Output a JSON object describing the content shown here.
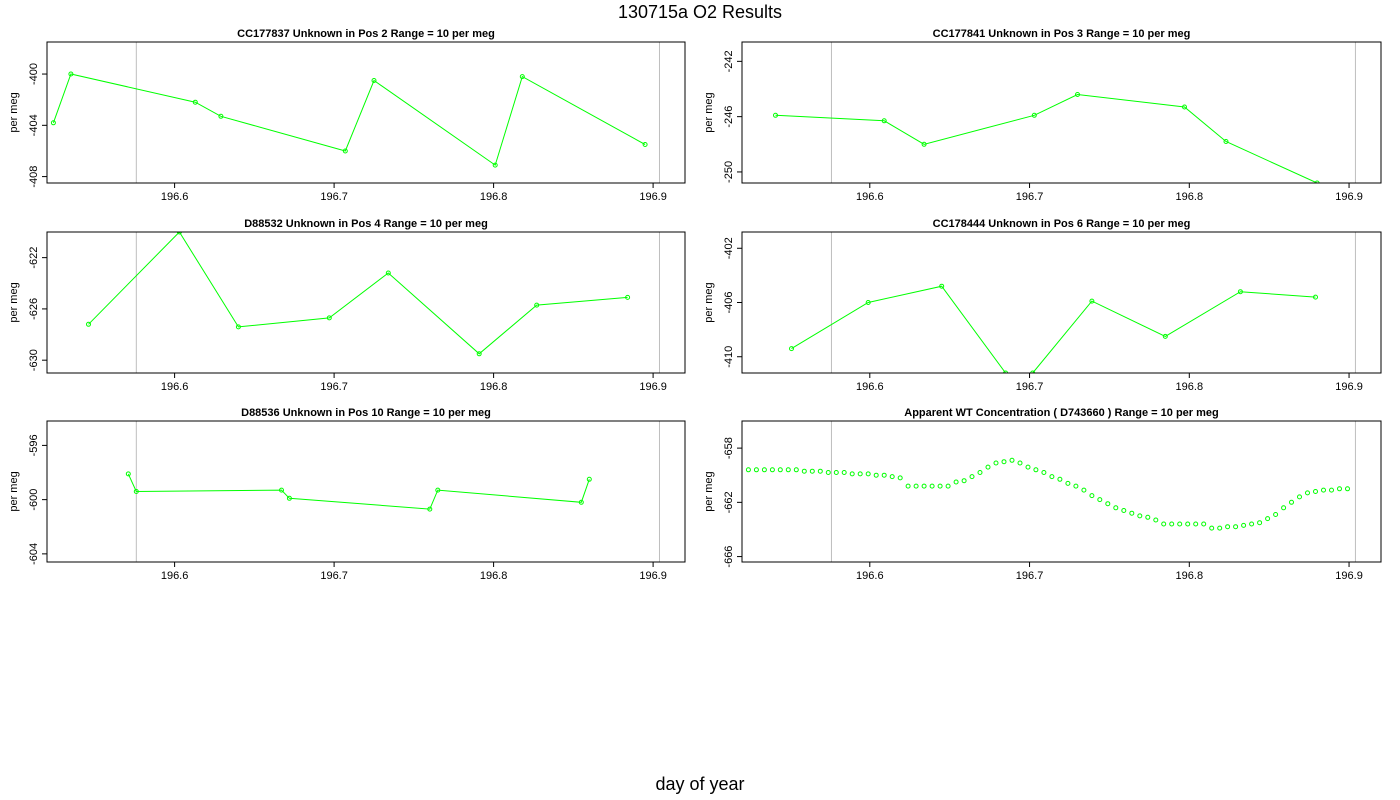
{
  "page": {
    "title": "130715a  O2 Results",
    "xlabel": "day of year"
  },
  "chart_data": [
    {
      "type": "line",
      "title": "CC177837    Unknown in Pos 2          Range = 10 per meg",
      "xlabel": "",
      "ylabel": "per meg",
      "xlim": [
        196.52,
        196.92
      ],
      "ylim": [
        -408.5,
        -397.5
      ],
      "xticks": [
        196.6,
        196.7,
        196.8,
        196.9
      ],
      "yticks": [
        -400,
        -404,
        -408
      ],
      "vlines": [
        196.576,
        196.904
      ],
      "points": [
        [
          196.524,
          -403.8
        ],
        [
          196.535,
          -400.0
        ],
        [
          196.613,
          -402.2
        ],
        [
          196.629,
          -403.3
        ],
        [
          196.707,
          -406.0
        ],
        [
          196.725,
          -400.5
        ],
        [
          196.801,
          -407.1
        ],
        [
          196.818,
          -400.2
        ],
        [
          196.895,
          -405.5
        ]
      ]
    },
    {
      "type": "line",
      "title": "CC177841    Unknown in Pos 3          Range = 10 per meg",
      "xlabel": "",
      "ylabel": "per meg",
      "xlim": [
        196.52,
        196.92
      ],
      "ylim": [
        -250.8,
        -240.6
      ],
      "xticks": [
        196.6,
        196.7,
        196.8,
        196.9
      ],
      "yticks": [
        -242,
        -246,
        -250
      ],
      "vlines": [
        196.576,
        196.904
      ],
      "points": [
        [
          196.541,
          -245.9
        ],
        [
          196.609,
          -246.3
        ],
        [
          196.634,
          -248.0
        ],
        [
          196.703,
          -245.9
        ],
        [
          196.73,
          -244.4
        ],
        [
          196.797,
          -245.3
        ],
        [
          196.823,
          -247.8
        ],
        [
          196.88,
          -250.8
        ]
      ]
    },
    {
      "type": "line",
      "title": "D88532    Unknown in Pos 4          Range = 10 per meg",
      "xlabel": "",
      "ylabel": "per meg",
      "xlim": [
        196.52,
        196.92
      ],
      "ylim": [
        -631.0,
        -620.0
      ],
      "xticks": [
        196.6,
        196.7,
        196.8,
        196.9
      ],
      "yticks": [
        -622,
        -626,
        -630
      ],
      "vlines": [
        196.576,
        196.904
      ],
      "points": [
        [
          196.546,
          -627.2
        ],
        [
          196.603,
          -620.0
        ],
        [
          196.64,
          -627.4
        ],
        [
          196.697,
          -626.7
        ],
        [
          196.734,
          -623.2
        ],
        [
          196.791,
          -629.5
        ],
        [
          196.827,
          -625.7
        ],
        [
          196.884,
          -625.1
        ]
      ]
    },
    {
      "type": "line",
      "title": "CC178444    Unknown in Pos 6          Range = 10 per meg",
      "xlabel": "",
      "ylabel": "per meg",
      "xlim": [
        196.52,
        196.92
      ],
      "ylim": [
        -411.2,
        -400.8
      ],
      "xticks": [
        196.6,
        196.7,
        196.8,
        196.9
      ],
      "yticks": [
        -402,
        -406,
        -410
      ],
      "vlines": [
        196.576,
        196.904
      ],
      "points": [
        [
          196.551,
          -409.4
        ],
        [
          196.599,
          -406.0
        ],
        [
          196.645,
          -404.8
        ],
        [
          196.685,
          -411.2
        ],
        [
          196.702,
          -411.2
        ],
        [
          196.739,
          -405.9
        ],
        [
          196.785,
          -408.5
        ],
        [
          196.832,
          -405.2
        ],
        [
          196.879,
          -405.6
        ]
      ]
    },
    {
      "type": "line",
      "title": "D88536    Unknown in Pos 10          Range = 10 per meg",
      "xlabel": "",
      "ylabel": "per meg",
      "xlim": [
        196.52,
        196.92
      ],
      "ylim": [
        -604.6,
        -594.2
      ],
      "xticks": [
        196.6,
        196.7,
        196.8,
        196.9
      ],
      "yticks": [
        -596,
        -600,
        -604
      ],
      "vlines": [
        196.576,
        196.904
      ],
      "points": [
        [
          196.571,
          -598.1
        ],
        [
          196.576,
          -599.4
        ],
        [
          196.667,
          -599.3
        ],
        [
          196.672,
          -599.9
        ],
        [
          196.76,
          -600.7
        ],
        [
          196.765,
          -599.3
        ],
        [
          196.855,
          -600.2
        ],
        [
          196.86,
          -598.5
        ]
      ]
    },
    {
      "type": "scatter",
      "title": "Apparent WT Concentration ( D743660 )          Range = 10 per meg",
      "xlabel": "",
      "ylabel": "per meg",
      "xlim": [
        196.52,
        196.92
      ],
      "ylim": [
        -666.4,
        -656.0
      ],
      "xticks": [
        196.6,
        196.7,
        196.8,
        196.9
      ],
      "yticks": [
        -658,
        -662,
        -666
      ],
      "vlines": [
        196.576,
        196.904
      ],
      "points": [
        [
          196.524,
          -659.6
        ],
        [
          196.529,
          -659.6
        ],
        [
          196.534,
          -659.6
        ],
        [
          196.539,
          -659.6
        ],
        [
          196.544,
          -659.6
        ],
        [
          196.549,
          -659.6
        ],
        [
          196.554,
          -659.6
        ],
        [
          196.559,
          -659.7
        ],
        [
          196.564,
          -659.7
        ],
        [
          196.569,
          -659.7
        ],
        [
          196.574,
          -659.8
        ],
        [
          196.579,
          -659.8
        ],
        [
          196.584,
          -659.8
        ],
        [
          196.589,
          -659.9
        ],
        [
          196.594,
          -659.9
        ],
        [
          196.599,
          -659.9
        ],
        [
          196.604,
          -660.0
        ],
        [
          196.609,
          -660.0
        ],
        [
          196.614,
          -660.1
        ],
        [
          196.619,
          -660.2
        ],
        [
          196.624,
          -660.8
        ],
        [
          196.629,
          -660.8
        ],
        [
          196.634,
          -660.8
        ],
        [
          196.639,
          -660.8
        ],
        [
          196.644,
          -660.8
        ],
        [
          196.649,
          -660.8
        ],
        [
          196.654,
          -660.5
        ],
        [
          196.659,
          -660.4
        ],
        [
          196.664,
          -660.1
        ],
        [
          196.669,
          -659.8
        ],
        [
          196.674,
          -659.4
        ],
        [
          196.679,
          -659.1
        ],
        [
          196.684,
          -659.0
        ],
        [
          196.689,
          -658.9
        ],
        [
          196.694,
          -659.1
        ],
        [
          196.699,
          -659.4
        ],
        [
          196.704,
          -659.6
        ],
        [
          196.709,
          -659.8
        ],
        [
          196.714,
          -660.1
        ],
        [
          196.719,
          -660.3
        ],
        [
          196.724,
          -660.6
        ],
        [
          196.729,
          -660.8
        ],
        [
          196.734,
          -661.1
        ],
        [
          196.739,
          -661.5
        ],
        [
          196.744,
          -661.8
        ],
        [
          196.749,
          -662.1
        ],
        [
          196.754,
          -662.4
        ],
        [
          196.759,
          -662.6
        ],
        [
          196.764,
          -662.8
        ],
        [
          196.769,
          -663.0
        ],
        [
          196.774,
          -663.1
        ],
        [
          196.779,
          -663.3
        ],
        [
          196.784,
          -663.6
        ],
        [
          196.789,
          -663.6
        ],
        [
          196.794,
          -663.6
        ],
        [
          196.799,
          -663.6
        ],
        [
          196.804,
          -663.6
        ],
        [
          196.809,
          -663.6
        ],
        [
          196.814,
          -663.9
        ],
        [
          196.819,
          -663.9
        ],
        [
          196.824,
          -663.8
        ],
        [
          196.829,
          -663.8
        ],
        [
          196.834,
          -663.7
        ],
        [
          196.839,
          -663.6
        ],
        [
          196.844,
          -663.5
        ],
        [
          196.849,
          -663.2
        ],
        [
          196.854,
          -662.9
        ],
        [
          196.859,
          -662.4
        ],
        [
          196.864,
          -662.0
        ],
        [
          196.869,
          -661.6
        ],
        [
          196.874,
          -661.3
        ],
        [
          196.879,
          -661.2
        ],
        [
          196.884,
          -661.1
        ],
        [
          196.889,
          -661.1
        ],
        [
          196.894,
          -661.0
        ],
        [
          196.899,
          -661.0
        ]
      ]
    }
  ],
  "colors": {
    "series": "#00ff00",
    "axes": "#000000",
    "vline": "#bebebe"
  }
}
